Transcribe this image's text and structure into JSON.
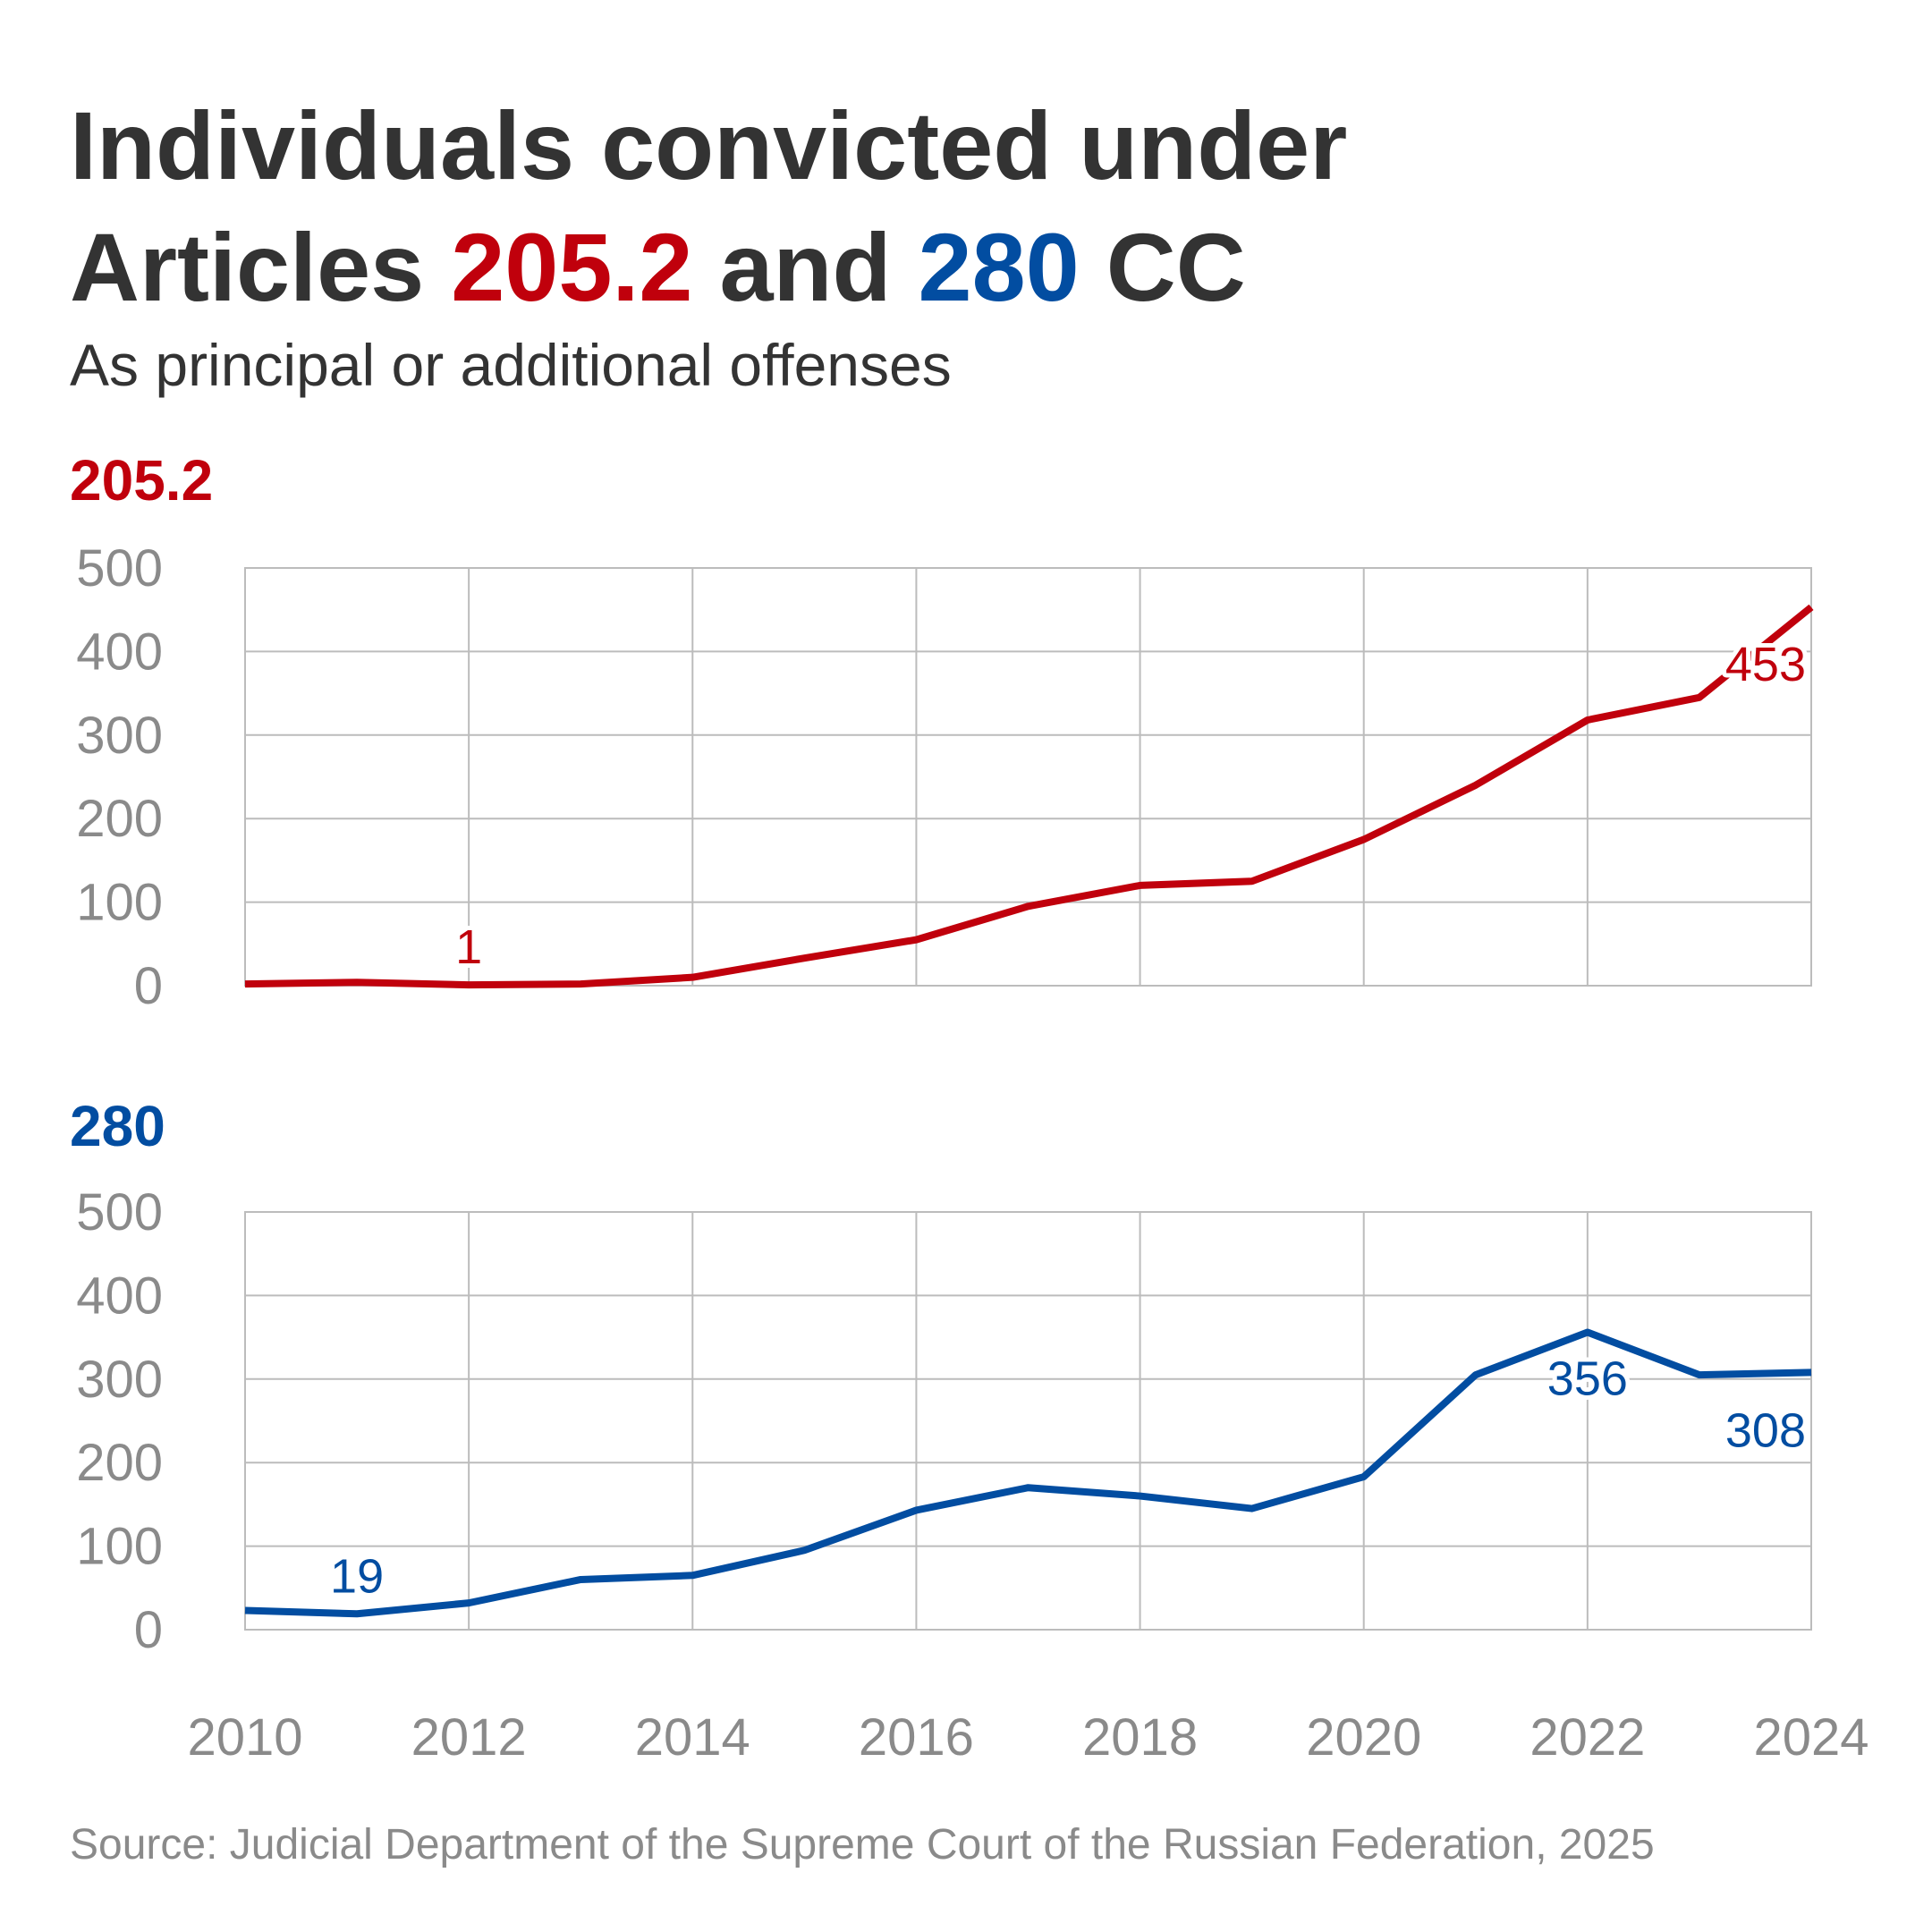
{
  "title": {
    "line1": "Individuals convicted under",
    "line2_prefix": "Articles ",
    "line2_red": "205.2",
    "line2_mid": " and ",
    "line2_blue": "280",
    "line2_suffix": " CC"
  },
  "subtitle": "As principal or additional offenses",
  "source": "Source: Judicial Department of the Supreme Court of the Russian Federation, 2025",
  "colors": {
    "red": "#c0000c",
    "blue": "#024da1",
    "grid": "#bcbcbc",
    "tick": "#8a8a8a"
  },
  "chart_data": [
    {
      "type": "line",
      "title": "205.2",
      "x": [
        2010,
        2011,
        2012,
        2013,
        2014,
        2015,
        2016,
        2017,
        2018,
        2019,
        2020,
        2021,
        2022,
        2023,
        2024
      ],
      "values": [
        2,
        4,
        1,
        2,
        10,
        33,
        55,
        95,
        120,
        125,
        175,
        240,
        318,
        345,
        453
      ],
      "ylim": [
        0,
        500
      ],
      "yticks": [
        0,
        100,
        200,
        300,
        400,
        500
      ],
      "xticks": [
        2010,
        2012,
        2014,
        2016,
        2018,
        2020,
        2022,
        2024
      ],
      "color": "#c0000c",
      "labels": [
        {
          "year": 2012,
          "text": "1"
        },
        {
          "year": 2024,
          "text": "453"
        }
      ]
    },
    {
      "type": "line",
      "title": "280",
      "x": [
        2010,
        2011,
        2012,
        2013,
        2014,
        2015,
        2016,
        2017,
        2018,
        2019,
        2020,
        2021,
        2022,
        2023,
        2024
      ],
      "values": [
        23,
        19,
        32,
        60,
        65,
        95,
        143,
        170,
        160,
        145,
        183,
        305,
        356,
        305,
        308
      ],
      "ylim": [
        0,
        500
      ],
      "yticks": [
        0,
        100,
        200,
        300,
        400,
        500
      ],
      "xticks": [
        2010,
        2012,
        2014,
        2016,
        2018,
        2020,
        2022,
        2024
      ],
      "color": "#024da1",
      "labels": [
        {
          "year": 2011,
          "text": "19"
        },
        {
          "year": 2022,
          "text": "356"
        },
        {
          "year": 2024,
          "text": "308"
        }
      ]
    }
  ]
}
